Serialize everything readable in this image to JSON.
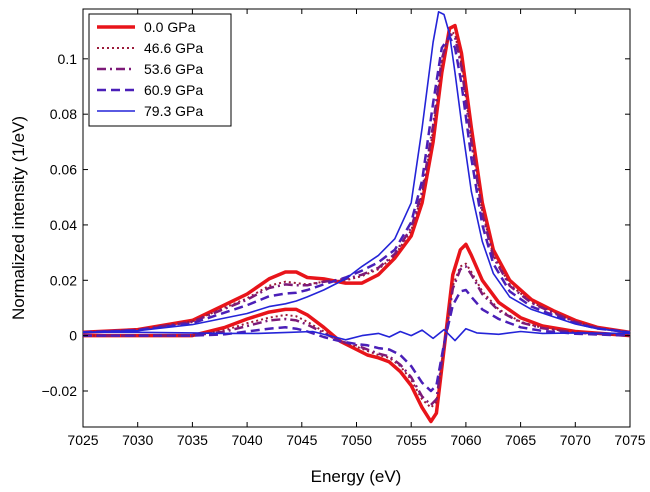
{
  "chart_data": {
    "type": "line",
    "title": "",
    "xlabel": "Energy (eV)",
    "ylabel": "Normalized intensity (1/eV)",
    "xlim": [
      7025,
      7075
    ],
    "ylim": [
      -0.033,
      0.118
    ],
    "xticks": [
      7025,
      7030,
      7035,
      7040,
      7045,
      7050,
      7055,
      7060,
      7065,
      7070,
      7075
    ],
    "yticks": [
      {
        "value": -0.02,
        "label": "−0.02"
      },
      {
        "value": 0,
        "label": "0"
      },
      {
        "value": 0.02,
        "label": "0.02"
      },
      {
        "value": 0.04,
        "label": "0.04"
      },
      {
        "value": 0.06,
        "label": "0.06"
      },
      {
        "value": 0.08,
        "label": "0.08"
      },
      {
        "value": 0.1,
        "label": "0.1"
      }
    ],
    "grid": false,
    "legend_position": "top-left",
    "series": [
      {
        "name": "0.0 GPa",
        "color": "#e8141a",
        "dash": "solid",
        "width": 3.5,
        "spectrum": [
          [
            7025,
            0.0012
          ],
          [
            7030,
            0.0022
          ],
          [
            7035,
            0.0055
          ],
          [
            7040,
            0.015
          ],
          [
            7042,
            0.0205
          ],
          [
            7043.5,
            0.023
          ],
          [
            7044.5,
            0.023
          ],
          [
            7045.5,
            0.021
          ],
          [
            7047,
            0.0205
          ],
          [
            7049,
            0.019
          ],
          [
            7050.5,
            0.019
          ],
          [
            7052,
            0.022
          ],
          [
            7053.5,
            0.028
          ],
          [
            7055,
            0.036
          ],
          [
            7056,
            0.048
          ],
          [
            7057,
            0.07
          ],
          [
            7057.8,
            0.095
          ],
          [
            7058.5,
            0.111
          ],
          [
            7059,
            0.112
          ],
          [
            7059.6,
            0.102
          ],
          [
            7060.5,
            0.075
          ],
          [
            7061.5,
            0.048
          ],
          [
            7062.5,
            0.031
          ],
          [
            7064,
            0.02
          ],
          [
            7066,
            0.013
          ],
          [
            7068,
            0.009
          ],
          [
            7070,
            0.0055
          ],
          [
            7072,
            0.003
          ],
          [
            7075,
            0.0012
          ]
        ],
        "difference": [
          [
            7025,
            0
          ],
          [
            7035,
            0
          ],
          [
            7038,
            0.003
          ],
          [
            7040,
            0.006
          ],
          [
            7042,
            0.0085
          ],
          [
            7043.5,
            0.0095
          ],
          [
            7044.5,
            0.0095
          ],
          [
            7045.5,
            0.0075
          ],
          [
            7047,
            0.003
          ],
          [
            7048.5,
            -0.002
          ],
          [
            7050,
            -0.005
          ],
          [
            7051,
            -0.007
          ],
          [
            7052,
            -0.008
          ],
          [
            7053,
            -0.0095
          ],
          [
            7054,
            -0.013
          ],
          [
            7055,
            -0.018
          ],
          [
            7056,
            -0.026
          ],
          [
            7056.8,
            -0.031
          ],
          [
            7057.3,
            -0.028
          ],
          [
            7058,
            -0.005
          ],
          [
            7058.8,
            0.022
          ],
          [
            7059.5,
            0.031
          ],
          [
            7060,
            0.033
          ],
          [
            7060.5,
            0.029
          ],
          [
            7061.5,
            0.02
          ],
          [
            7063,
            0.012
          ],
          [
            7065,
            0.0065
          ],
          [
            7067,
            0.0035
          ],
          [
            7070,
            0.0015
          ],
          [
            7075,
            0
          ]
        ]
      },
      {
        "name": "46.6 GPa",
        "color": "#9b1b3a",
        "dash": "dot",
        "width": 2,
        "spectrum": [
          [
            7025,
            0.0012
          ],
          [
            7030,
            0.0021
          ],
          [
            7035,
            0.0052
          ],
          [
            7040,
            0.0135
          ],
          [
            7042,
            0.018
          ],
          [
            7043.5,
            0.0195
          ],
          [
            7044.5,
            0.019
          ],
          [
            7045.5,
            0.0185
          ],
          [
            7047,
            0.0195
          ],
          [
            7049,
            0.02
          ],
          [
            7050.5,
            0.0215
          ],
          [
            7052,
            0.024
          ],
          [
            7053.5,
            0.029
          ],
          [
            7055,
            0.038
          ],
          [
            7056,
            0.051
          ],
          [
            7057,
            0.074
          ],
          [
            7057.8,
            0.099
          ],
          [
            7058.5,
            0.11
          ],
          [
            7059,
            0.109
          ],
          [
            7059.6,
            0.098
          ],
          [
            7060.5,
            0.071
          ],
          [
            7061.5,
            0.045
          ],
          [
            7062.5,
            0.029
          ],
          [
            7064,
            0.0185
          ],
          [
            7066,
            0.012
          ],
          [
            7068,
            0.0085
          ],
          [
            7070,
            0.005
          ],
          [
            7072,
            0.0028
          ],
          [
            7075,
            0.0012
          ]
        ],
        "difference": [
          [
            7025,
            0
          ],
          [
            7035,
            0
          ],
          [
            7038,
            0.002
          ],
          [
            7040,
            0.0045
          ],
          [
            7042,
            0.0065
          ],
          [
            7043.5,
            0.0075
          ],
          [
            7044.5,
            0.007
          ],
          [
            7045.5,
            0.005
          ],
          [
            7047,
            0.0015
          ],
          [
            7048.5,
            -0.002
          ],
          [
            7050,
            -0.004
          ],
          [
            7051,
            -0.0055
          ],
          [
            7052,
            -0.007
          ],
          [
            7053,
            -0.008
          ],
          [
            7054,
            -0.011
          ],
          [
            7055,
            -0.016
          ],
          [
            7056,
            -0.023
          ],
          [
            7056.8,
            -0.026
          ],
          [
            7057.3,
            -0.024
          ],
          [
            7058,
            -0.004
          ],
          [
            7058.8,
            0.018
          ],
          [
            7059.5,
            0.025
          ],
          [
            7060,
            0.026
          ],
          [
            7060.5,
            0.023
          ],
          [
            7061.5,
            0.016
          ],
          [
            7063,
            0.0095
          ],
          [
            7065,
            0.005
          ],
          [
            7067,
            0.0028
          ],
          [
            7070,
            0.0012
          ],
          [
            7075,
            0
          ]
        ]
      },
      {
        "name": "53.6 GPa",
        "color": "#7d1a78",
        "dash": "dashdot",
        "width": 2.5,
        "spectrum": [
          [
            7025,
            0.0012
          ],
          [
            7030,
            0.0021
          ],
          [
            7035,
            0.005
          ],
          [
            7040,
            0.013
          ],
          [
            7042,
            0.0172
          ],
          [
            7043.5,
            0.0185
          ],
          [
            7044.5,
            0.0182
          ],
          [
            7045.5,
            0.0182
          ],
          [
            7047,
            0.0195
          ],
          [
            7049,
            0.0205
          ],
          [
            7050.5,
            0.022
          ],
          [
            7052,
            0.0245
          ],
          [
            7053.5,
            0.0295
          ],
          [
            7055,
            0.039
          ],
          [
            7056,
            0.052
          ],
          [
            7057,
            0.076
          ],
          [
            7057.8,
            0.1
          ],
          [
            7058.5,
            0.109
          ],
          [
            7059,
            0.108
          ],
          [
            7059.6,
            0.097
          ],
          [
            7060.5,
            0.07
          ],
          [
            7061.5,
            0.044
          ],
          [
            7062.5,
            0.0285
          ],
          [
            7064,
            0.018
          ],
          [
            7066,
            0.0118
          ],
          [
            7068,
            0.0082
          ],
          [
            7070,
            0.005
          ],
          [
            7072,
            0.0028
          ],
          [
            7075,
            0.0012
          ]
        ],
        "difference": [
          [
            7025,
            0
          ],
          [
            7035,
            0
          ],
          [
            7038,
            0.0015
          ],
          [
            7040,
            0.0035
          ],
          [
            7042,
            0.0055
          ],
          [
            7043.5,
            0.006
          ],
          [
            7044.5,
            0.0055
          ],
          [
            7045.5,
            0.004
          ],
          [
            7047,
            0.001
          ],
          [
            7048.5,
            -0.002
          ],
          [
            7050,
            -0.0035
          ],
          [
            7051,
            -0.005
          ],
          [
            7052,
            -0.0065
          ],
          [
            7053,
            -0.0075
          ],
          [
            7054,
            -0.0105
          ],
          [
            7055,
            -0.015
          ],
          [
            7056,
            -0.022
          ],
          [
            7056.8,
            -0.025
          ],
          [
            7057.3,
            -0.023
          ],
          [
            7058,
            -0.004
          ],
          [
            7058.8,
            0.017
          ],
          [
            7059.5,
            0.024
          ],
          [
            7060,
            0.025
          ],
          [
            7060.5,
            0.022
          ],
          [
            7061.5,
            0.015
          ],
          [
            7063,
            0.009
          ],
          [
            7065,
            0.0048
          ],
          [
            7067,
            0.0027
          ],
          [
            7070,
            0.0011
          ],
          [
            7075,
            0
          ]
        ]
      },
      {
        "name": "60.9 GPa",
        "color": "#4a1fb8",
        "dash": "dash",
        "width": 2.5,
        "spectrum": [
          [
            7025,
            0.0012
          ],
          [
            7030,
            0.002
          ],
          [
            7035,
            0.0045
          ],
          [
            7040,
            0.011
          ],
          [
            7042,
            0.0142
          ],
          [
            7043.5,
            0.0152
          ],
          [
            7044.5,
            0.0155
          ],
          [
            7045.5,
            0.0165
          ],
          [
            7047,
            0.0185
          ],
          [
            7049,
            0.021
          ],
          [
            7050.5,
            0.0235
          ],
          [
            7052,
            0.0265
          ],
          [
            7053.5,
            0.031
          ],
          [
            7055,
            0.041
          ],
          [
            7056,
            0.056
          ],
          [
            7057,
            0.084
          ],
          [
            7057.8,
            0.104
          ],
          [
            7058.5,
            0.108
          ],
          [
            7059,
            0.104
          ],
          [
            7059.6,
            0.091
          ],
          [
            7060.5,
            0.064
          ],
          [
            7061.5,
            0.04
          ],
          [
            7062.5,
            0.026
          ],
          [
            7064,
            0.016
          ],
          [
            7066,
            0.0105
          ],
          [
            7068,
            0.0074
          ],
          [
            7070,
            0.0045
          ],
          [
            7072,
            0.0026
          ],
          [
            7075,
            0.0012
          ]
        ],
        "difference": [
          [
            7025,
            0
          ],
          [
            7035,
            0
          ],
          [
            7038,
            0.0005
          ],
          [
            7040,
            0.0015
          ],
          [
            7042,
            0.0025
          ],
          [
            7043.5,
            0.003
          ],
          [
            7044.5,
            0.0025
          ],
          [
            7045.5,
            0.0015
          ],
          [
            7047,
            -0.0005
          ],
          [
            7048.5,
            -0.002
          ],
          [
            7050,
            -0.003
          ],
          [
            7051,
            -0.0035
          ],
          [
            7052,
            -0.0045
          ],
          [
            7053,
            -0.005
          ],
          [
            7054,
            -0.007
          ],
          [
            7055,
            -0.011
          ],
          [
            7056,
            -0.017
          ],
          [
            7056.8,
            -0.02
          ],
          [
            7057.3,
            -0.018
          ],
          [
            7058,
            -0.003
          ],
          [
            7058.8,
            0.011
          ],
          [
            7059.5,
            0.016
          ],
          [
            7060,
            0.0165
          ],
          [
            7060.5,
            0.014
          ],
          [
            7061.5,
            0.0095
          ],
          [
            7063,
            0.006
          ],
          [
            7065,
            0.003
          ],
          [
            7067,
            0.0017
          ],
          [
            7070,
            0.0007
          ],
          [
            7075,
            0
          ]
        ]
      },
      {
        "name": "79.3 GPa",
        "color": "#2424d8",
        "dash": "solid",
        "width": 1.6,
        "spectrum": [
          [
            7025,
            0.0012
          ],
          [
            7030,
            0.0018
          ],
          [
            7035,
            0.004
          ],
          [
            7040,
            0.008
          ],
          [
            7042,
            0.0105
          ],
          [
            7043.5,
            0.0115
          ],
          [
            7044.5,
            0.0125
          ],
          [
            7045.5,
            0.014
          ],
          [
            7047,
            0.0165
          ],
          [
            7049,
            0.0205
          ],
          [
            7050.5,
            0.025
          ],
          [
            7052,
            0.029
          ],
          [
            7053.5,
            0.035
          ],
          [
            7055,
            0.048
          ],
          [
            7056,
            0.075
          ],
          [
            7057,
            0.106
          ],
          [
            7057.5,
            0.117
          ],
          [
            7058,
            0.116
          ],
          [
            7058.5,
            0.109
          ],
          [
            7059,
            0.095
          ],
          [
            7059.6,
            0.077
          ],
          [
            7060.5,
            0.052
          ],
          [
            7061.5,
            0.034
          ],
          [
            7062.5,
            0.0225
          ],
          [
            7064,
            0.014
          ],
          [
            7066,
            0.0095
          ],
          [
            7068,
            0.0068
          ],
          [
            7070,
            0.0042
          ],
          [
            7072,
            0.0025
          ],
          [
            7075,
            0.0012
          ]
        ],
        "difference": [
          [
            7025,
            0.0012
          ],
          [
            7030,
            0.0012
          ],
          [
            7035,
            0.001
          ],
          [
            7038,
            0.0008
          ],
          [
            7041,
            0.0008
          ],
          [
            7044,
            0.0012
          ],
          [
            7046,
            0.0015
          ],
          [
            7047.5,
            0
          ],
          [
            7049,
            -0.0015
          ],
          [
            7050.5,
            0
          ],
          [
            7052,
            0.0008
          ],
          [
            7053,
            -0.0005
          ],
          [
            7054,
            0.0015
          ],
          [
            7055,
            0
          ],
          [
            7056,
            0.002
          ],
          [
            7057,
            -0.001
          ],
          [
            7058,
            0.0022
          ],
          [
            7059,
            -0.0018
          ],
          [
            7060,
            0.0025
          ],
          [
            7061,
            0.001
          ],
          [
            7063,
            0.0005
          ],
          [
            7065,
            0.0015
          ],
          [
            7067,
            0.0008
          ],
          [
            7070,
            0.001
          ],
          [
            7075,
            0.0008
          ]
        ]
      }
    ]
  }
}
